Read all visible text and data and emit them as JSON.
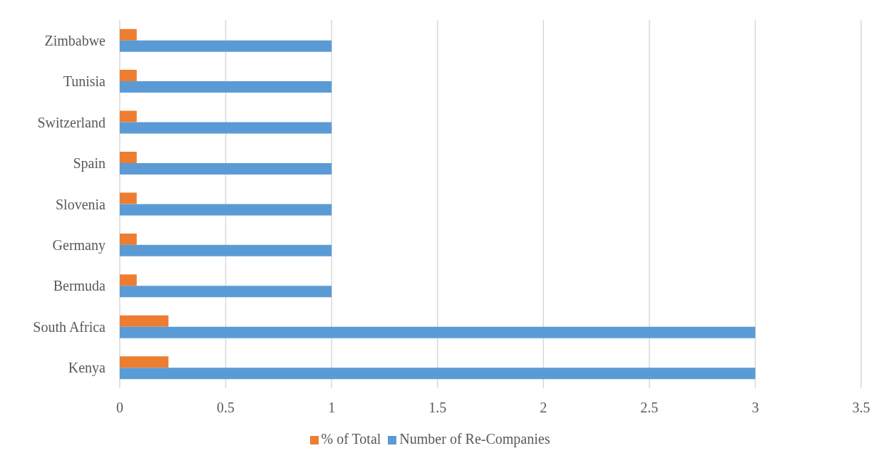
{
  "chart_data": {
    "type": "bar",
    "orientation": "horizontal",
    "categories": [
      "Zimbabwe",
      "Tunisia",
      "Switzerland",
      "Spain",
      "Slovenia",
      "Germany",
      "Bermuda",
      "South Africa",
      "Kenya"
    ],
    "series": [
      {
        "name": "% of Total",
        "color": "#ed7d31",
        "values": [
          0.08,
          0.08,
          0.08,
          0.08,
          0.08,
          0.08,
          0.08,
          0.23,
          0.23
        ]
      },
      {
        "name": "Number of Re-Companies",
        "color": "#5b9bd5",
        "values": [
          1,
          1,
          1,
          1,
          1,
          1,
          1,
          3,
          3
        ]
      }
    ],
    "xlim": [
      0,
      3.5
    ],
    "xticks": [
      0,
      0.5,
      1,
      1.5,
      2,
      2.5,
      3,
      3.5
    ],
    "grid": "x",
    "legend": "bottom"
  }
}
